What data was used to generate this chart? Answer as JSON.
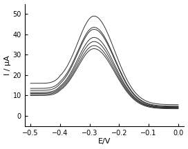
{
  "title": "",
  "xlabel": "E/V",
  "ylabel": "I / μA",
  "xlim": [
    -0.52,
    0.02
  ],
  "ylim": [
    -5,
    55
  ],
  "xticks": [
    -0.5,
    -0.4,
    -0.3,
    -0.2,
    -0.1,
    0.0
  ],
  "yticks": [
    0,
    10,
    20,
    30,
    40,
    50
  ],
  "peak_voltage": -0.285,
  "background_color": "#ffffff",
  "line_color": "#1a1a1a",
  "num_curves": 7,
  "baseline_values": [
    10.0,
    10.5,
    11.0,
    11.5,
    12.5,
    13.5,
    16.0
  ],
  "peak_heights": [
    33.0,
    34.5,
    36.5,
    38.5,
    42.5,
    43.5,
    49.0
  ],
  "right_tail_values": [
    3.5,
    3.8,
    4.0,
    4.2,
    4.5,
    4.8,
    5.5
  ]
}
